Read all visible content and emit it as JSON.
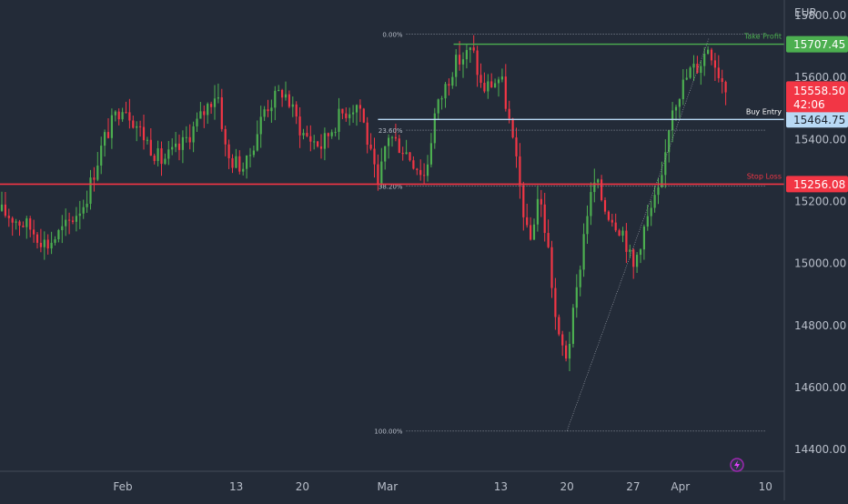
{
  "chart_data": {
    "type": "candlestick",
    "currency_label": "EUR",
    "y_ticks": [
      14400,
      14600,
      14800,
      15000,
      15200,
      15400,
      15600,
      15800
    ],
    "y_tick_labels": [
      "14400.00",
      "14600.00",
      "14800.00",
      "15000.00",
      "15200.00",
      "15400.00",
      "15600.00",
      "15800.00"
    ],
    "x_ticks": [
      {
        "label": "Feb",
        "date": "2023-02-01"
      },
      {
        "label": "13",
        "date": "2023-02-13"
      },
      {
        "label": "20",
        "date": "2023-02-20"
      },
      {
        "label": "Mar",
        "date": "2023-03-01"
      },
      {
        "label": "13",
        "date": "2023-03-13"
      },
      {
        "label": "20",
        "date": "2023-03-20"
      },
      {
        "label": "27",
        "date": "2023-03-27"
      },
      {
        "label": "Apr",
        "date": "2023-04-01"
      },
      {
        "label": "10",
        "date": "2023-04-10"
      }
    ],
    "x_range": [
      "2023-01-19",
      "2023-04-12"
    ],
    "y_range": [
      14330,
      15850
    ],
    "price_path": [
      [
        "2023-01-19",
        15170
      ],
      [
        "2023-01-22",
        15120
      ],
      [
        "2023-01-24",
        15060
      ],
      [
        "2023-01-26",
        15120
      ],
      [
        "2023-01-28",
        15200
      ],
      [
        "2023-01-30",
        15400
      ],
      [
        "2023-02-01",
        15520
      ],
      [
        "2023-02-03",
        15420
      ],
      [
        "2023-02-05",
        15330
      ],
      [
        "2023-02-07",
        15370
      ],
      [
        "2023-02-09",
        15460
      ],
      [
        "2023-02-11",
        15560
      ],
      [
        "2023-02-12",
        15340
      ],
      [
        "2023-02-14",
        15310
      ],
      [
        "2023-02-16",
        15500
      ],
      [
        "2023-02-18",
        15560
      ],
      [
        "2023-02-20",
        15420
      ],
      [
        "2023-02-22",
        15380
      ],
      [
        "2023-02-24",
        15480
      ],
      [
        "2023-02-26",
        15520
      ],
      [
        "2023-02-28",
        15240
      ],
      [
        "2023-03-01",
        15420
      ],
      [
        "2023-03-03",
        15360
      ],
      [
        "2023-03-05",
        15280
      ],
      [
        "2023-03-06",
        15480
      ],
      [
        "2023-03-08",
        15640
      ],
      [
        "2023-03-10",
        15690
      ],
      [
        "2023-03-11",
        15560
      ],
      [
        "2023-03-13",
        15600
      ],
      [
        "2023-03-14",
        15440
      ],
      [
        "2023-03-15",
        15250
      ],
      [
        "2023-03-16",
        15050
      ],
      [
        "2023-03-17",
        15230
      ],
      [
        "2023-03-18",
        15050
      ],
      [
        "2023-03-19",
        14760
      ],
      [
        "2023-03-20",
        14700
      ],
      [
        "2023-03-21",
        14900
      ],
      [
        "2023-03-22",
        15150
      ],
      [
        "2023-03-23",
        15270
      ],
      [
        "2023-03-24",
        15180
      ],
      [
        "2023-03-26",
        15100
      ],
      [
        "2023-03-27",
        14980
      ],
      [
        "2023-03-28",
        15100
      ],
      [
        "2023-03-29",
        15180
      ],
      [
        "2023-03-30",
        15250
      ],
      [
        "2023-03-31",
        15500
      ],
      [
        "2023-04-02",
        15620
      ],
      [
        "2023-04-03",
        15640
      ],
      [
        "2023-04-04",
        15707
      ],
      [
        "2023-04-05",
        15620
      ],
      [
        "2023-04-06",
        15560
      ]
    ],
    "fib_levels": [
      {
        "label": "0.00%",
        "value": 15740
      },
      {
        "label": "23.60%",
        "value": 15430
      },
      {
        "label": "38.20%",
        "value": 15250
      },
      {
        "label": "100.00%",
        "value": 14460
      }
    ],
    "fib_range": {
      "from_date": "2023-03-03",
      "to_date": "2023-04-10"
    },
    "trend_line": {
      "from": [
        "2023-03-20",
        14460
      ],
      "to": [
        "2023-04-04",
        15725
      ]
    },
    "take_profit": {
      "label": "Take Profit",
      "price_label": "15707.45",
      "value": 15707.45,
      "from_date": "2023-03-08",
      "color": "#4caf50"
    },
    "buy_entry": {
      "label": "Buy Entry",
      "price_label": "15464.75",
      "value": 15464.75,
      "from_date": "2023-02-28",
      "color": "#b8d9f5"
    },
    "stop_loss": {
      "label": "Stop Loss",
      "price_label": "15256.08",
      "value": 15256.08,
      "from_date": "2023-01-19",
      "color": "#f23645"
    },
    "current_price": {
      "price_label": "15558.50",
      "countdown": "42:06",
      "value": 15558.5,
      "color": "#f23645"
    },
    "colors": {
      "up": "#4caf50",
      "down": "#f23645",
      "background": "#232b38",
      "text": "#b8bec9"
    }
  }
}
